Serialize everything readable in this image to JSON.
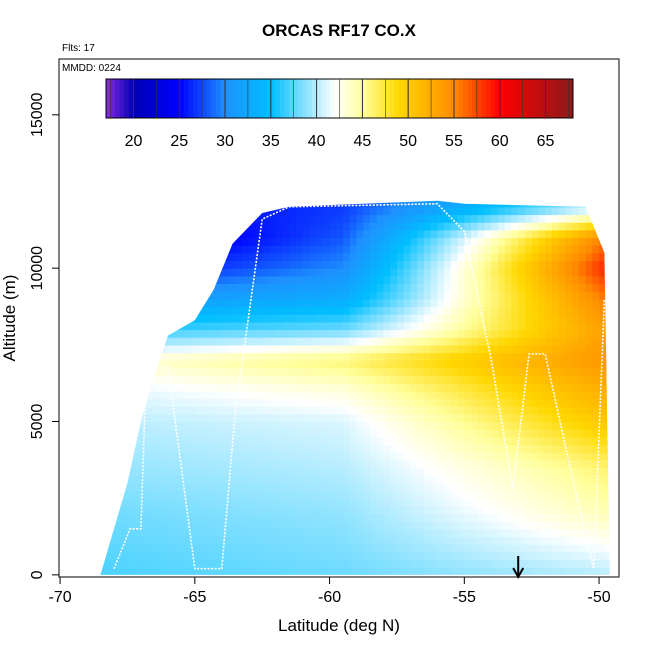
{
  "chart_data": {
    "type": "heatmap",
    "title": "ORCAS RF17 CO.X",
    "flights_note": "Flts: 17",
    "date_note": "MMDD: 0224",
    "xlabel": "Latitude (deg N)",
    "ylabel": "Altitude (m)",
    "xlim": [
      -70,
      -49
    ],
    "ylim": [
      0,
      17000
    ],
    "x_ticks": [
      -70,
      -65,
      -60,
      -55,
      -50
    ],
    "x_tick_labels": [
      "-70",
      "-65",
      "-60",
      "-55",
      "-50"
    ],
    "y_ticks": [
      0,
      5000,
      10000,
      15000
    ],
    "y_tick_labels": [
      "0",
      "5000",
      "10000",
      "15000"
    ],
    "colorbar": {
      "min": 17,
      "max": 68,
      "ticks": [
        20,
        25,
        30,
        35,
        40,
        45,
        50,
        55,
        60,
        65
      ],
      "tick_labels": [
        "20",
        "25",
        "30",
        "35",
        "40",
        "45",
        "50",
        "55",
        "60",
        "65"
      ],
      "colors": [
        "#8a2be2",
        "#0000b4",
        "#0000ff",
        "#1e90ff",
        "#00bfff",
        "#ffffff",
        "#ffff9e",
        "#ffd700",
        "#ff8c00",
        "#ff0000",
        "#8b1a1a"
      ],
      "stops": [
        17,
        20,
        25,
        30,
        35,
        42,
        45,
        49,
        55,
        60,
        68
      ]
    },
    "marker": {
      "latitude": -53,
      "symbol": "down-arrow"
    },
    "grid": false,
    "envelope": [
      [
        -68.5,
        0
      ],
      [
        -68.0,
        1500
      ],
      [
        -67.5,
        3000
      ],
      [
        -67.0,
        5000
      ],
      [
        -66.5,
        6500
      ],
      [
        -66.0,
        7800
      ],
      [
        -65.0,
        8300
      ],
      [
        -64.3,
        9300
      ],
      [
        -63.6,
        10800
      ],
      [
        -62.5,
        11800
      ],
      [
        -61.5,
        12000
      ],
      [
        -56.0,
        12200
      ],
      [
        -55.0,
        12100
      ],
      [
        -50.5,
        12000
      ],
      [
        -49.8,
        10500
      ],
      [
        -49.6,
        0
      ]
    ],
    "profile_fields": [
      {
        "altitude": 0,
        "west": 37,
        "mid": 38,
        "east": 40
      },
      {
        "altitude": 2000,
        "west": 38,
        "mid": 39,
        "east": 44
      },
      {
        "altitude": 3500,
        "west": 39,
        "mid": 40,
        "east": 46
      },
      {
        "altitude": 5000,
        "west": 40,
        "mid": 41,
        "east": 50
      },
      {
        "altitude": 6000,
        "west": 41,
        "mid": 43,
        "east": 52
      },
      {
        "altitude": 7000,
        "west": 43,
        "mid": 46,
        "east": 54
      },
      {
        "altitude": 8000,
        "west": 36,
        "mid": 38,
        "east": 53
      },
      {
        "altitude": 9000,
        "west": 31,
        "mid": 33,
        "east": 55
      },
      {
        "altitude": 10000,
        "west": 24,
        "mid": 30,
        "east": 58
      },
      {
        "altitude": 11000,
        "west": 21,
        "mid": 28,
        "east": 55
      },
      {
        "altitude": 12000,
        "west": 24,
        "mid": 27,
        "east": 40
      }
    ],
    "flight_track": [
      [
        -68.0,
        200
      ],
      [
        -67.4,
        1500
      ],
      [
        -67.0,
        1500
      ],
      [
        -66.8,
        6800
      ],
      [
        -66.0,
        6800
      ],
      [
        -65.0,
        200
      ],
      [
        -64.0,
        200
      ],
      [
        -63.5,
        5300
      ],
      [
        -62.5,
        11600
      ],
      [
        -61.5,
        12000
      ],
      [
        -56.0,
        12100
      ],
      [
        -55.0,
        11200
      ],
      [
        -54.0,
        7000
      ],
      [
        -53.2,
        2800
      ],
      [
        -52.6,
        7200
      ],
      [
        -52.0,
        7200
      ],
      [
        -51.0,
        3200
      ],
      [
        -50.2,
        200
      ],
      [
        -49.8,
        9000
      ]
    ]
  }
}
